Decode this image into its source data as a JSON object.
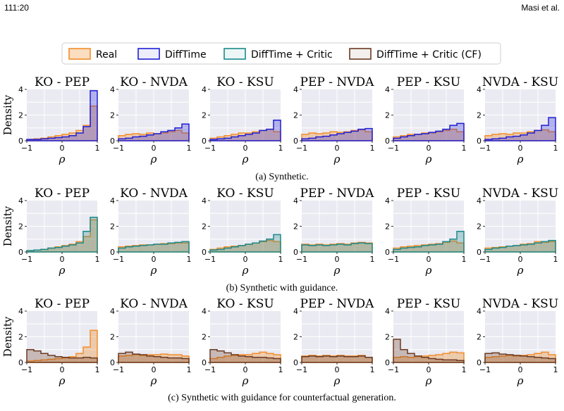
{
  "header": {
    "left": "111:20",
    "right": "Masi et al."
  },
  "legend": [
    {
      "label": "Real",
      "color": "#f28e2b"
    },
    {
      "label": "DiffTime",
      "color": "#1f1fd6"
    },
    {
      "label": "DiffTime + Critic",
      "color": "#1a8a8a"
    },
    {
      "label": "DiffTime + Critic (CF)",
      "color": "#6b3a21"
    }
  ],
  "captions": [
    "(a) Synthetic.",
    "(b) Synthetic with guidance.",
    "(c) Synthetic with guidance for counterfactual generation."
  ],
  "axes": {
    "ylabel": "Density",
    "xlabel": "ρ",
    "xticks": [
      "−1",
      "0",
      "1"
    ],
    "yticks": [
      "0",
      "2",
      "4"
    ],
    "xlim": [
      -1,
      1
    ],
    "ylim": [
      0,
      4
    ]
  },
  "chart_data": [
    {
      "type": "histogram-grid",
      "row": "a",
      "bin_edges": [
        -1,
        -0.8,
        -0.6,
        -0.4,
        -0.2,
        0,
        0.2,
        0.4,
        0.6,
        0.8,
        1
      ],
      "panels": [
        {
          "title": "KO - PEP",
          "series": [
            {
              "name": "Real",
              "values": [
                0.1,
                0.15,
                0.2,
                0.3,
                0.4,
                0.5,
                0.6,
                0.8,
                1.2,
                2.7
              ]
            },
            {
              "name": "DiffTime",
              "values": [
                0.1,
                0.1,
                0.15,
                0.2,
                0.25,
                0.3,
                0.4,
                0.6,
                1.1,
                3.9
              ]
            }
          ]
        },
        {
          "title": "KO - NVDA",
          "series": [
            {
              "name": "Real",
              "values": [
                0.4,
                0.5,
                0.55,
                0.5,
                0.6,
                0.55,
                0.6,
                0.7,
                0.8,
                0.6
              ]
            },
            {
              "name": "DiffTime",
              "values": [
                0.15,
                0.2,
                0.3,
                0.35,
                0.45,
                0.55,
                0.7,
                0.8,
                1.0,
                1.3
              ]
            }
          ]
        },
        {
          "title": "KO - KSU",
          "series": [
            {
              "name": "Real",
              "values": [
                0.2,
                0.3,
                0.4,
                0.5,
                0.6,
                0.6,
                0.7,
                0.8,
                0.9,
                0.7
              ]
            },
            {
              "name": "DiffTime",
              "values": [
                0.1,
                0.15,
                0.2,
                0.3,
                0.4,
                0.5,
                0.6,
                0.8,
                0.9,
                1.6
              ]
            }
          ]
        },
        {
          "title": "PEP - NVDA",
          "series": [
            {
              "name": "Real",
              "values": [
                0.5,
                0.6,
                0.55,
                0.6,
                0.7,
                0.65,
                0.7,
                0.8,
                0.85,
                0.7
              ]
            },
            {
              "name": "DiffTime",
              "values": [
                0.15,
                0.2,
                0.3,
                0.35,
                0.45,
                0.55,
                0.65,
                0.75,
                0.9,
                0.95
              ]
            }
          ]
        },
        {
          "title": "PEP - KSU",
          "series": [
            {
              "name": "Real",
              "values": [
                0.3,
                0.4,
                0.5,
                0.5,
                0.6,
                0.6,
                0.7,
                0.8,
                0.9,
                0.7
              ]
            },
            {
              "name": "DiffTime",
              "values": [
                0.2,
                0.3,
                0.4,
                0.5,
                0.55,
                0.65,
                0.75,
                0.9,
                1.2,
                1.35
              ]
            }
          ]
        },
        {
          "title": "NVDA - KSU",
          "series": [
            {
              "name": "Real",
              "values": [
                0.4,
                0.5,
                0.55,
                0.5,
                0.6,
                0.6,
                0.7,
                0.8,
                0.85,
                0.7
              ]
            },
            {
              "name": "DiffTime",
              "values": [
                0.1,
                0.15,
                0.2,
                0.3,
                0.35,
                0.45,
                0.6,
                0.8,
                1.2,
                1.8
              ]
            }
          ]
        }
      ]
    },
    {
      "type": "histogram-grid",
      "row": "b",
      "bin_edges": [
        -1,
        -0.8,
        -0.6,
        -0.4,
        -0.2,
        0,
        0.2,
        0.4,
        0.6,
        0.8,
        1
      ],
      "panels": [
        {
          "title": "KO - PEP",
          "series": [
            {
              "name": "Real",
              "values": [
                0.1,
                0.15,
                0.2,
                0.3,
                0.4,
                0.5,
                0.6,
                0.8,
                1.2,
                2.5
              ]
            },
            {
              "name": "DiffTime + Critic",
              "values": [
                0.1,
                0.15,
                0.2,
                0.3,
                0.35,
                0.45,
                0.55,
                0.7,
                1.6,
                2.7
              ]
            }
          ]
        },
        {
          "title": "KO - NVDA",
          "series": [
            {
              "name": "Real",
              "values": [
                0.4,
                0.45,
                0.5,
                0.55,
                0.55,
                0.6,
                0.65,
                0.65,
                0.7,
                0.7
              ]
            },
            {
              "name": "DiffTime + Critic",
              "values": [
                0.3,
                0.4,
                0.45,
                0.5,
                0.55,
                0.6,
                0.6,
                0.7,
                0.75,
                0.8
              ]
            }
          ]
        },
        {
          "title": "KO - KSU",
          "series": [
            {
              "name": "Real",
              "values": [
                0.2,
                0.3,
                0.4,
                0.45,
                0.5,
                0.6,
                0.7,
                0.8,
                0.9,
                0.8
              ]
            },
            {
              "name": "DiffTime + Critic",
              "values": [
                0.15,
                0.2,
                0.3,
                0.4,
                0.5,
                0.6,
                0.7,
                0.85,
                1.0,
                1.35
              ]
            }
          ]
        },
        {
          "title": "PEP - NVDA",
          "series": [
            {
              "name": "Real",
              "values": [
                0.6,
                0.55,
                0.6,
                0.55,
                0.6,
                0.65,
                0.6,
                0.7,
                0.75,
                0.7
              ]
            },
            {
              "name": "DiffTime + Critic",
              "values": [
                0.55,
                0.5,
                0.55,
                0.5,
                0.55,
                0.6,
                0.55,
                0.65,
                0.7,
                0.65
              ]
            }
          ]
        },
        {
          "title": "PEP - KSU",
          "series": [
            {
              "name": "Real",
              "values": [
                0.3,
                0.4,
                0.45,
                0.5,
                0.55,
                0.6,
                0.65,
                0.75,
                0.85,
                0.7
              ]
            },
            {
              "name": "DiffTime + Critic",
              "values": [
                0.2,
                0.3,
                0.35,
                0.4,
                0.5,
                0.55,
                0.6,
                0.8,
                1.0,
                1.6
              ]
            }
          ]
        },
        {
          "title": "NVDA - KSU",
          "series": [
            {
              "name": "Real",
              "values": [
                0.3,
                0.35,
                0.4,
                0.45,
                0.5,
                0.6,
                0.65,
                0.8,
                0.75,
                0.8
              ]
            },
            {
              "name": "DiffTime + Critic",
              "values": [
                0.2,
                0.3,
                0.35,
                0.45,
                0.5,
                0.55,
                0.6,
                0.7,
                0.8,
                0.9
              ]
            }
          ]
        }
      ]
    },
    {
      "type": "histogram-grid",
      "row": "c",
      "bin_edges": [
        -1,
        -0.8,
        -0.6,
        -0.4,
        -0.2,
        0,
        0.2,
        0.4,
        0.6,
        0.8,
        1
      ],
      "panels": [
        {
          "title": "KO - PEP",
          "series": [
            {
              "name": "Real",
              "values": [
                0.1,
                0.15,
                0.2,
                0.25,
                0.3,
                0.35,
                0.45,
                0.7,
                1.2,
                2.5
              ]
            },
            {
              "name": "DiffTime + Critic (CF)",
              "values": [
                1.0,
                0.9,
                0.7,
                0.55,
                0.45,
                0.4,
                0.35,
                0.35,
                0.4,
                0.35
              ]
            }
          ]
        },
        {
          "title": "KO - NVDA",
          "series": [
            {
              "name": "Real",
              "values": [
                0.5,
                0.55,
                0.6,
                0.55,
                0.6,
                0.6,
                0.65,
                0.6,
                0.6,
                0.5
              ]
            },
            {
              "name": "DiffTime + Critic (CF)",
              "values": [
                0.7,
                0.8,
                0.65,
                0.6,
                0.5,
                0.45,
                0.4,
                0.35,
                0.35,
                0.3
              ]
            }
          ]
        },
        {
          "title": "KO - KSU",
          "series": [
            {
              "name": "Real",
              "values": [
                0.3,
                0.4,
                0.5,
                0.55,
                0.6,
                0.6,
                0.7,
                0.8,
                0.7,
                0.6
              ]
            },
            {
              "name": "DiffTime + Critic (CF)",
              "values": [
                1.0,
                0.9,
                0.75,
                0.6,
                0.5,
                0.45,
                0.4,
                0.4,
                0.35,
                0.3
              ]
            }
          ]
        },
        {
          "title": "PEP - NVDA",
          "series": [
            {
              "name": "Real",
              "values": [
                0.5,
                0.55,
                0.5,
                0.55,
                0.5,
                0.55,
                0.5,
                0.5,
                0.55,
                0.4
              ]
            },
            {
              "name": "DiffTime + Critic (CF)",
              "values": [
                0.45,
                0.5,
                0.45,
                0.5,
                0.45,
                0.5,
                0.45,
                0.45,
                0.5,
                0.4
              ]
            }
          ]
        },
        {
          "title": "PEP - KSU",
          "series": [
            {
              "name": "Real",
              "values": [
                0.4,
                0.45,
                0.4,
                0.45,
                0.5,
                0.55,
                0.6,
                0.7,
                0.8,
                0.75
              ]
            },
            {
              "name": "DiffTime + Critic (CF)",
              "values": [
                1.8,
                1.0,
                0.7,
                0.5,
                0.4,
                0.3,
                0.25,
                0.2,
                0.2,
                0.15
              ]
            }
          ]
        },
        {
          "title": "NVDA - KSU",
          "series": [
            {
              "name": "Real",
              "values": [
                0.4,
                0.45,
                0.5,
                0.55,
                0.5,
                0.55,
                0.6,
                0.7,
                0.8,
                0.6
              ]
            },
            {
              "name": "DiffTime + Critic (CF)",
              "values": [
                0.7,
                0.75,
                0.65,
                0.6,
                0.55,
                0.5,
                0.45,
                0.4,
                0.35,
                0.3
              ]
            }
          ]
        }
      ]
    }
  ]
}
